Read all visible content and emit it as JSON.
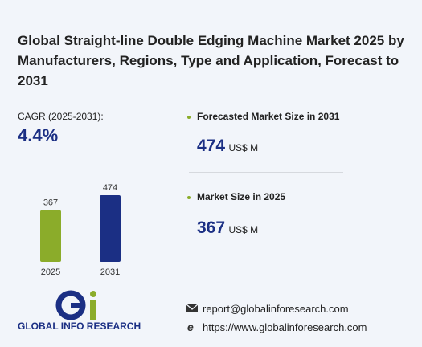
{
  "title": "Global Straight-line Double Edging Machine Market 2025 by Manufacturers, Regions, Type and Application, Forecast to 2031",
  "cagr": {
    "label": "CAGR (2025-2031):",
    "value": "4.4%"
  },
  "stats": [
    {
      "label": "Forecasted Market Size in 2031",
      "value": 474,
      "unit": "US$ M"
    },
    {
      "label": "Market Size in 2025",
      "value": 367,
      "unit": "US$ M"
    }
  ],
  "chart_data": {
    "type": "bar",
    "categories": [
      "2025",
      "2031"
    ],
    "values": [
      367,
      474
    ],
    "colors": [
      "#8bac2a",
      "#1b2f84"
    ]
  },
  "logo": {
    "text": "GLOBAL INFO RESEARCH"
  },
  "contact": {
    "email": "report@globalinforesearch.com",
    "website": "https://www.globalinforesearch.com"
  }
}
